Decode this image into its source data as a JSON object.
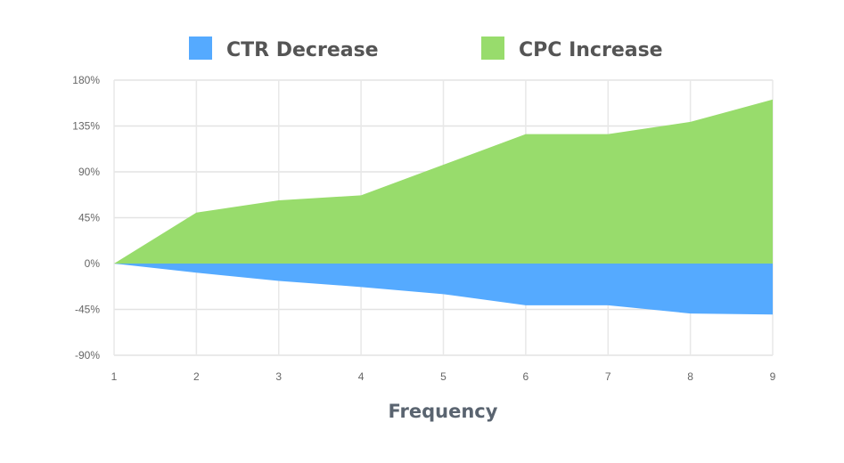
{
  "chart_data": {
    "type": "area",
    "title": "",
    "xlabel": "Frequency",
    "ylabel": "",
    "x": [
      1,
      2,
      3,
      4,
      5,
      6,
      7,
      8,
      9
    ],
    "series": [
      {
        "name": "CTR Decrease",
        "color": "#55aaff",
        "values": [
          0,
          -9,
          -17,
          -23,
          -30,
          -41,
          -41,
          -49,
          -50
        ]
      },
      {
        "name": "CPC Increase",
        "color": "#98dc6c",
        "values": [
          0,
          50,
          62,
          67,
          97,
          127,
          127,
          139,
          161
        ]
      }
    ],
    "ylim": [
      -90,
      180
    ],
    "yticks": [
      180,
      135,
      90,
      45,
      0,
      -45,
      -90
    ],
    "ytick_labels": [
      "180%",
      "135%",
      "90%",
      "45%",
      "0%",
      "-45%",
      "-90%"
    ],
    "xtick_labels": [
      "1",
      "2",
      "3",
      "4",
      "5",
      "6",
      "7",
      "8",
      "9"
    ],
    "grid": true,
    "legend_position": "top-center"
  }
}
